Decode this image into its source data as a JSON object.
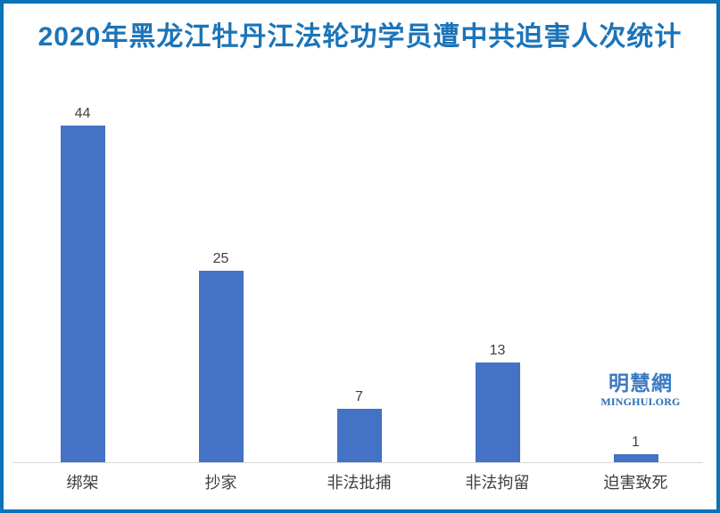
{
  "frame": {
    "border_color": "#0C73B8",
    "background_color": "#FFFFFF"
  },
  "chart_data": {
    "type": "bar",
    "title": "2020年黑龙江牡丹江法轮功学员遭中共迫害人次统计",
    "title_color": "#1B74B8",
    "categories": [
      "绑架",
      "抄家",
      "非法批捕",
      "非法拘留",
      "迫害致死"
    ],
    "values": [
      44,
      25,
      7,
      13,
      1
    ],
    "bar_color": "#4472C4",
    "value_label_color": "#404040",
    "category_label_color": "#404040",
    "axis_line_color": "#D9D9D9",
    "xlabel": "",
    "ylabel": "",
    "ylim": [
      0,
      44
    ],
    "grid": false,
    "legend": "none",
    "value_labels_shown": true,
    "y_axis_shown": false
  },
  "watermark": {
    "chinese": "明慧網",
    "chinese_color": "#3A7AC2",
    "domain": "MINGHUI.ORG",
    "domain_color": "#2A6CB6"
  }
}
